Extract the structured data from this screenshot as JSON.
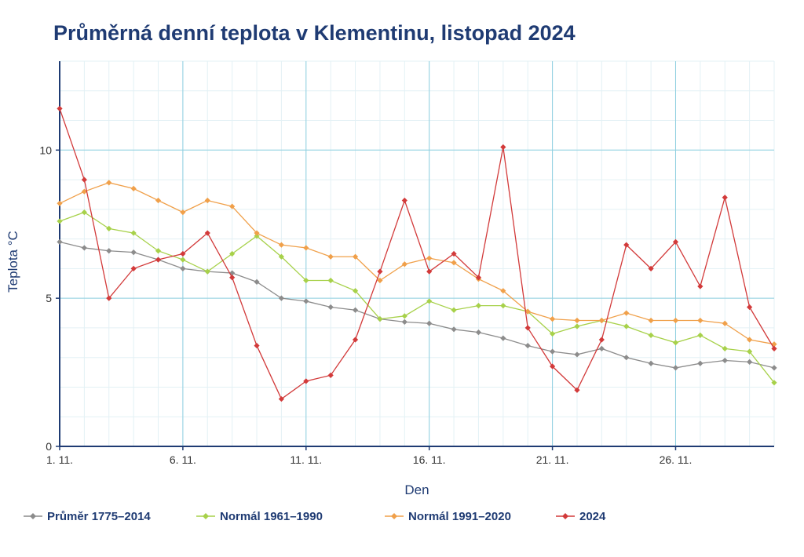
{
  "colors": {
    "title": "#1f3b73",
    "axis": "#1f3b73",
    "grid_major": "#8ecfe0",
    "grid_minor": "#e3f1f5",
    "series": [
      "#8c8c8c",
      "#a7d14a",
      "#f0a04a",
      "#d23a3a"
    ]
  },
  "chart_data": {
    "type": "line",
    "title": "Průměrná denní teplota v Klementinu, listopad 2024",
    "xlabel": "Den",
    "ylabel": "Teplota  °C",
    "x": [
      1,
      2,
      3,
      4,
      5,
      6,
      7,
      8,
      9,
      10,
      11,
      12,
      13,
      14,
      15,
      16,
      17,
      18,
      19,
      20,
      21,
      22,
      23,
      24,
      25,
      26,
      27,
      28,
      29,
      30
    ],
    "xlim": [
      1,
      30
    ],
    "ylim": [
      0,
      13
    ],
    "x_ticks": [
      1,
      6,
      11,
      16,
      21,
      26
    ],
    "x_tick_labels": [
      "1. 11.",
      "6. 11.",
      "11. 11.",
      "16. 11.",
      "21. 11.",
      "26. 11."
    ],
    "y_ticks": [
      0,
      5,
      10
    ],
    "y_tick_labels": [
      "0",
      "5",
      "10"
    ],
    "grid": true,
    "legend_position": "bottom",
    "series": [
      {
        "name": "Průměr 1775–2014",
        "values": [
          6.9,
          6.7,
          6.6,
          6.55,
          6.3,
          6.0,
          5.9,
          5.85,
          5.55,
          5.0,
          4.9,
          4.7,
          4.6,
          4.3,
          4.2,
          4.15,
          3.95,
          3.85,
          3.65,
          3.4,
          3.2,
          3.1,
          3.3,
          3.0,
          2.8,
          2.65,
          2.8,
          2.9,
          2.85,
          2.65
        ]
      },
      {
        "name": "Normál 1961–1990",
        "values": [
          7.6,
          7.9,
          7.35,
          7.2,
          6.6,
          6.3,
          5.9,
          6.5,
          7.1,
          6.4,
          5.6,
          5.6,
          5.25,
          4.3,
          4.4,
          4.9,
          4.6,
          4.75,
          4.75,
          4.55,
          3.8,
          4.05,
          4.25,
          4.05,
          3.75,
          3.5,
          3.75,
          3.3,
          3.2,
          2.15
        ]
      },
      {
        "name": "Normál 1991–2020",
        "values": [
          8.2,
          8.6,
          8.9,
          8.7,
          8.3,
          7.9,
          8.3,
          8.1,
          7.2,
          6.8,
          6.7,
          6.4,
          6.4,
          5.6,
          6.15,
          6.35,
          6.2,
          5.65,
          5.25,
          4.55,
          4.3,
          4.25,
          4.25,
          4.5,
          4.25,
          4.25,
          4.25,
          4.15,
          3.6,
          3.45
        ]
      },
      {
        "name": "2024",
        "values": [
          11.4,
          9.0,
          5.0,
          6.0,
          6.3,
          6.5,
          7.2,
          5.7,
          3.4,
          1.6,
          2.2,
          2.4,
          3.6,
          5.9,
          8.3,
          5.9,
          6.5,
          5.7,
          10.1,
          4.0,
          2.7,
          1.9,
          3.6,
          6.8,
          6.0,
          6.9,
          5.4,
          8.4,
          4.7,
          3.3
        ]
      }
    ]
  }
}
